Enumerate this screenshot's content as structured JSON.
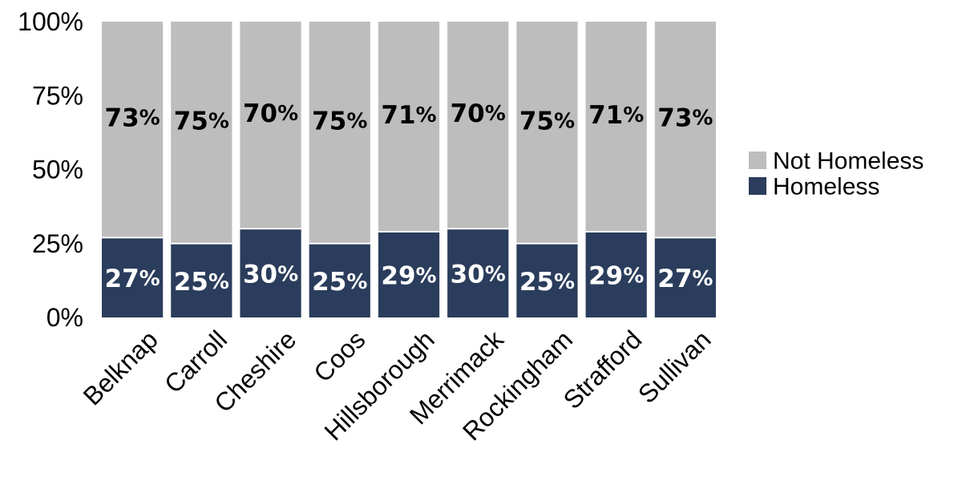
{
  "chart_data": {
    "type": "bar",
    "stacked": true,
    "categories": [
      "Belknap",
      "Carroll",
      "Cheshire",
      "Coos",
      "Hillsborough",
      "Merrimack",
      "Rockingham",
      "Strafford",
      "Sullivan"
    ],
    "series": [
      {
        "name": "Homeless",
        "color": "#2b3d5c",
        "label_color": "#ffffff",
        "values": [
          27,
          25,
          30,
          25,
          29,
          30,
          25,
          29,
          27
        ],
        "labels": [
          "27%",
          "25%",
          "30%",
          "25%",
          "29%",
          "30%",
          "25%",
          "29%",
          "27%"
        ]
      },
      {
        "name": "Not Homeless",
        "color": "#bdbdbd",
        "label_color": "#000000",
        "values": [
          73,
          75,
          70,
          75,
          71,
          70,
          75,
          71,
          73
        ],
        "labels": [
          "73%",
          "75%",
          "70%",
          "75%",
          "71%",
          "70%",
          "75%",
          "71%",
          "73%"
        ]
      }
    ],
    "ylim": [
      0,
      100
    ],
    "yticks": [
      "0%",
      "25%",
      "50%",
      "75%",
      "100%"
    ],
    "grid": false,
    "legend": {
      "placement": "right",
      "entries": [
        "Not Homeless",
        "Homeless"
      ]
    },
    "title": "",
    "xlabel": "",
    "ylabel": ""
  }
}
